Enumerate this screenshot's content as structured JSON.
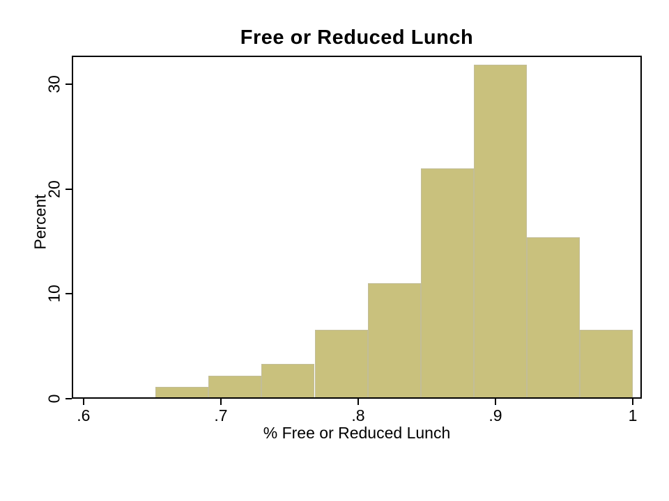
{
  "page": {
    "background": "#ffffff"
  },
  "chart_data": {
    "type": "bar",
    "subtype": "histogram",
    "title": "Free or Reduced Lunch",
    "xlabel": "% Free or Reduced Lunch",
    "ylabel": "Percent",
    "bin_edges": [
      0.6524,
      0.691,
      0.7296,
      0.7683,
      0.8069,
      0.8455,
      0.8841,
      0.9228,
      0.9614,
      1.0
    ],
    "values_percent": [
      1.099,
      2.198,
      3.297,
      6.593,
      10.989,
      21.978,
      31.868,
      15.385,
      6.593
    ],
    "x_ticks": [
      {
        "value": 0.6,
        "label": ".6"
      },
      {
        "value": 0.7,
        "label": ".7"
      },
      {
        "value": 0.8,
        "label": ".8"
      },
      {
        "value": 0.9,
        "label": ".9"
      },
      {
        "value": 1.0,
        "label": "1"
      }
    ],
    "y_ticks": [
      {
        "value": 0,
        "label": "0"
      },
      {
        "value": 10,
        "label": "10"
      },
      {
        "value": 20,
        "label": "20"
      },
      {
        "value": 30,
        "label": "30"
      }
    ],
    "xlim": [
      0.5914,
      1.0066
    ],
    "ylim": [
      0,
      32.72
    ],
    "grid": false,
    "legend": false,
    "colors": {
      "bar_fill": "#c9c17d",
      "bar_border": "#c2bd98",
      "axis": "#000000",
      "text": "#000000",
      "background": "#ffffff"
    }
  }
}
